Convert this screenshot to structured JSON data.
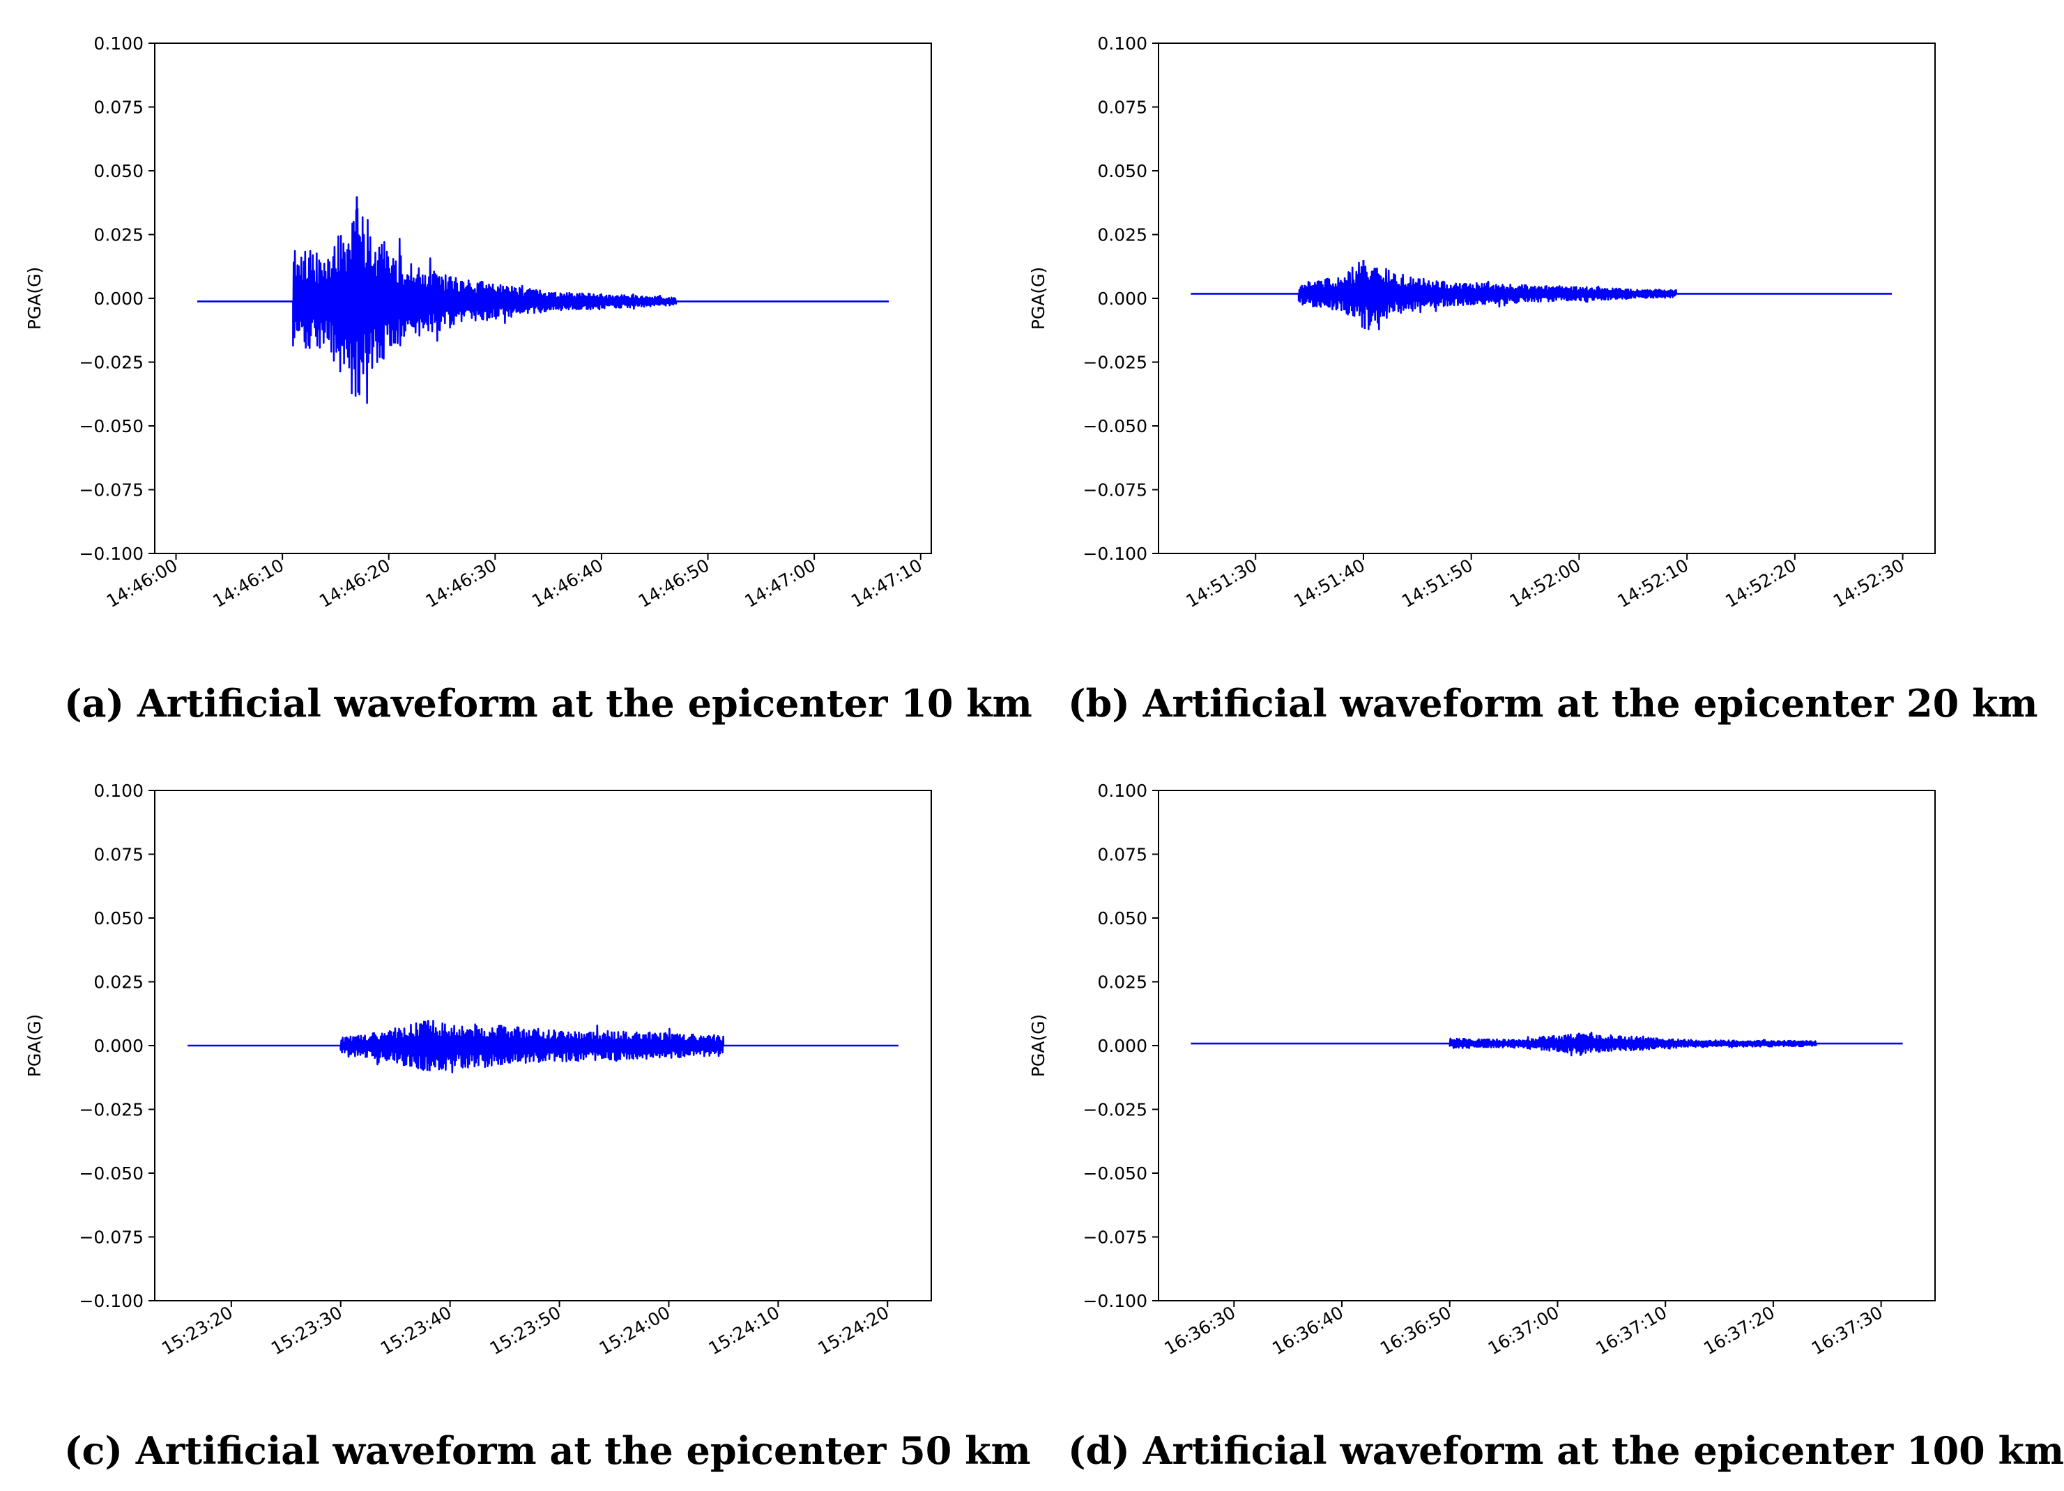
{
  "chart_data": [
    {
      "type": "line",
      "panel": "a",
      "caption": "(a) Artificial waveform at the epicenter 10 km",
      "ylabel": "PGA(G)",
      "xlabel": "",
      "ylim": [
        -0.1,
        0.1
      ],
      "yticks": [
        "0.100",
        "0.075",
        "0.050",
        "0.025",
        "0.000",
        "−0.025",
        "−0.050",
        "−0.075",
        "−0.100"
      ],
      "xticks": [
        "14:46:00",
        "14:46:10",
        "14:46:20",
        "14:46:30",
        "14:46:40",
        "14:46:50",
        "14:47:00",
        "14:47:10"
      ],
      "xlim": [
        "14:45:58",
        "14:47:11"
      ],
      "grid": false,
      "color": "#0000ff",
      "series": [
        {
          "signal_start": "14:46:02",
          "quake_onset": "14:46:11",
          "signal_end": "14:46:47",
          "trace_end": "14:47:07",
          "baseline": -0.0012,
          "pga_max": 0.04,
          "pga_min": -0.037,
          "envelope": [
            {
              "t": "14:46:11",
              "amp": 0.022
            },
            {
              "t": "14:46:14",
              "amp": 0.018
            },
            {
              "t": "14:46:17",
              "amp": 0.04
            },
            {
              "t": "14:46:19",
              "amp": 0.025
            },
            {
              "t": "14:46:22",
              "amp": 0.015
            },
            {
              "t": "14:46:26",
              "amp": 0.01
            },
            {
              "t": "14:46:30",
              "amp": 0.007
            },
            {
              "t": "14:46:35",
              "amp": 0.004
            },
            {
              "t": "14:46:40",
              "amp": 0.003
            },
            {
              "t": "14:46:47",
              "amp": 0.0015
            }
          ]
        }
      ]
    },
    {
      "type": "line",
      "panel": "b",
      "caption": "(b) Artificial waveform at the epicenter 20 km",
      "ylabel": "PGA(G)",
      "xlabel": "",
      "ylim": [
        -0.1,
        0.1
      ],
      "yticks": [
        "0.100",
        "0.075",
        "0.050",
        "0.025",
        "0.000",
        "−0.025",
        "−0.050",
        "−0.075",
        "−0.100"
      ],
      "xticks": [
        "14:51:30",
        "14:51:40",
        "14:51:50",
        "14:52:00",
        "14:52:10",
        "14:52:20",
        "14:52:30"
      ],
      "xlim": [
        "14:51:21",
        "14:52:33"
      ],
      "grid": false,
      "color": "#0000ff",
      "series": [
        {
          "signal_start": "14:51:24",
          "quake_onset": "14:51:34",
          "signal_end": "14:52:09",
          "trace_end": "14:52:29",
          "baseline": 0.0018,
          "pga_max": 0.015,
          "pga_min": -0.012,
          "envelope": [
            {
              "t": "14:51:34",
              "amp": 0.004
            },
            {
              "t": "14:51:38",
              "amp": 0.007
            },
            {
              "t": "14:51:40",
              "amp": 0.014
            },
            {
              "t": "14:51:43",
              "amp": 0.008
            },
            {
              "t": "14:51:47",
              "amp": 0.005
            },
            {
              "t": "14:51:52",
              "amp": 0.004
            },
            {
              "t": "14:51:58",
              "amp": 0.003
            },
            {
              "t": "14:52:09",
              "amp": 0.0015
            }
          ]
        }
      ]
    },
    {
      "type": "line",
      "panel": "c",
      "caption": "(c) Artificial waveform at the epicenter 50 km",
      "ylabel": "PGA(G)",
      "xlabel": "",
      "ylim": [
        -0.1,
        0.1
      ],
      "yticks": [
        "0.100",
        "0.075",
        "0.050",
        "0.025",
        "0.000",
        "−0.025",
        "−0.050",
        "−0.075",
        "−0.100"
      ],
      "xticks": [
        "15:23:20",
        "15:23:30",
        "15:23:40",
        "15:23:50",
        "15:24:00",
        "15:24:10",
        "15:24:20"
      ],
      "xlim": [
        "15:23:13",
        "15:24:24"
      ],
      "grid": false,
      "color": "#0000ff",
      "series": [
        {
          "signal_start": "15:23:16",
          "quake_onset": "15:23:30",
          "signal_end": "15:24:05",
          "trace_end": "15:24:21",
          "baseline": 0.0,
          "pga_max": 0.01,
          "pga_min": -0.01,
          "envelope": [
            {
              "t": "15:23:30",
              "amp": 0.003
            },
            {
              "t": "15:23:34",
              "amp": 0.006
            },
            {
              "t": "15:23:38",
              "amp": 0.01
            },
            {
              "t": "15:23:42",
              "amp": 0.009
            },
            {
              "t": "15:23:47",
              "amp": 0.007
            },
            {
              "t": "15:23:53",
              "amp": 0.006
            },
            {
              "t": "15:24:00",
              "amp": 0.005
            },
            {
              "t": "15:24:05",
              "amp": 0.004
            }
          ]
        }
      ]
    },
    {
      "type": "line",
      "panel": "d",
      "caption": "(d) Artificial waveform at the epicenter 100 km",
      "ylabel": "PGA(G)",
      "xlabel": "",
      "ylim": [
        -0.1,
        0.1
      ],
      "yticks": [
        "0.100",
        "0.075",
        "0.050",
        "0.025",
        "0.000",
        "−0.025",
        "−0.050",
        "−0.075",
        "−0.100"
      ],
      "xticks": [
        "16:36:30",
        "16:36:40",
        "16:36:50",
        "16:37:00",
        "16:37:10",
        "16:37:20",
        "16:37:30"
      ],
      "xlim": [
        "16:36:23",
        "16:37:35"
      ],
      "grid": false,
      "color": "#0000ff",
      "series": [
        {
          "signal_start": "16:36:26",
          "quake_onset": "16:36:50",
          "signal_end": "16:37:24",
          "trace_end": "16:37:32",
          "baseline": 0.0008,
          "pga_max": 0.005,
          "pga_min": -0.004,
          "envelope": [
            {
              "t": "16:36:50",
              "amp": 0.002
            },
            {
              "t": "16:36:56",
              "amp": 0.0015
            },
            {
              "t": "16:37:02",
              "amp": 0.004
            },
            {
              "t": "16:37:06",
              "amp": 0.003
            },
            {
              "t": "16:37:12",
              "amp": 0.0015
            },
            {
              "t": "16:37:24",
              "amp": 0.001
            }
          ]
        }
      ]
    }
  ]
}
